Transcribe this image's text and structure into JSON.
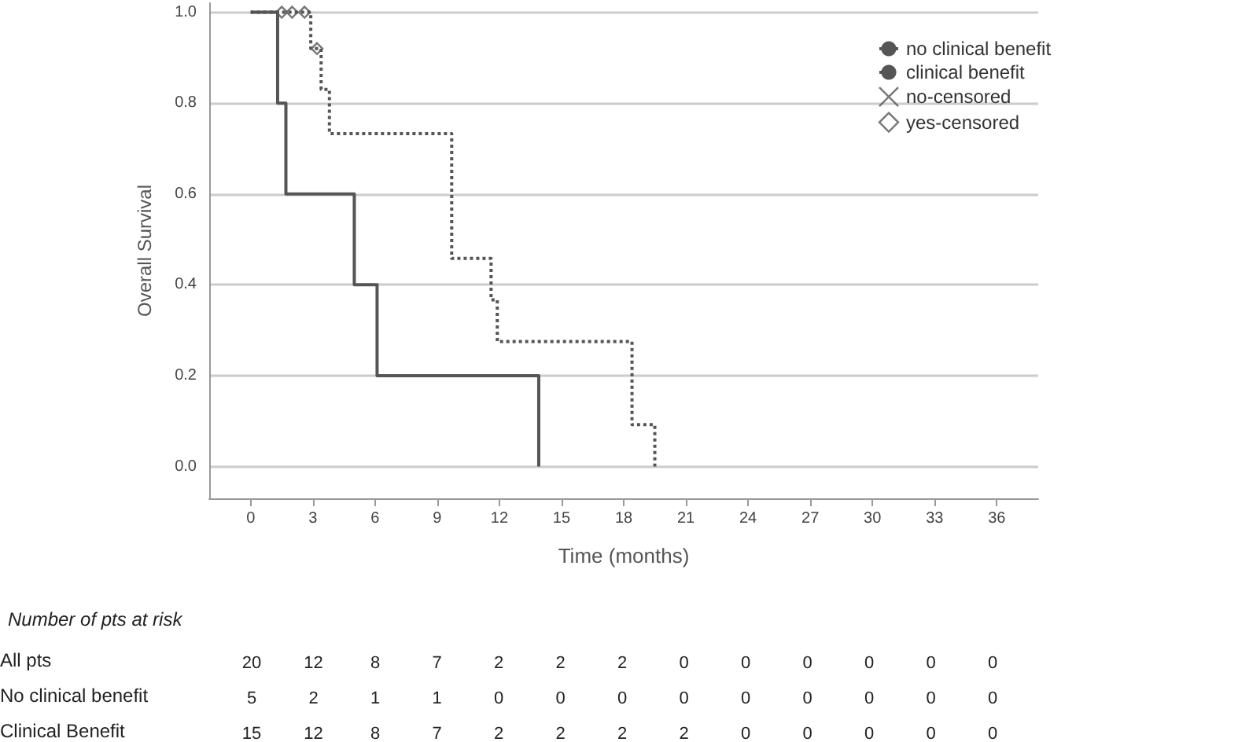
{
  "chart_data": [
    {
      "type": "step",
      "xlabel": "Time (months)",
      "ylabel": "Overall Survival",
      "xlim": [
        -2,
        38
      ],
      "ylim": [
        -0.07,
        1.02
      ],
      "xticks": [
        0,
        3,
        6,
        9,
        12,
        15,
        18,
        21,
        24,
        27,
        30,
        33,
        36
      ],
      "yticks": [
        {
          "value": 0,
          "label": "0.0"
        },
        {
          "value": 0.2,
          "label": "0.2"
        },
        {
          "value": 0.4,
          "label": "0.4"
        },
        {
          "value": 0.6,
          "label": "0.6"
        },
        {
          "value": 0.8,
          "label": "0.8"
        },
        {
          "value": 1,
          "label": "1.0"
        }
      ],
      "grid": "y",
      "legend": "right",
      "series": [
        {
          "name": "no clinical benefit",
          "color": "#555555",
          "line_style": "solid",
          "marker": "none",
          "x": [
            0,
            1.3,
            1.7,
            5.0,
            6.1,
            13.9
          ],
          "values": [
            1,
            0.8,
            0.6,
            0.4,
            0.2,
            0
          ]
        },
        {
          "name": "clinical benefit",
          "color": "#555555",
          "line_style": "dotted",
          "marker": "none",
          "x": [
            0,
            2.9,
            3.4,
            3.8,
            9.7,
            11.6,
            11.9,
            18.4,
            19.5
          ],
          "values": [
            1,
            0.92,
            0.83,
            0.733,
            0.458,
            0.367,
            0.275,
            0.092,
            0
          ]
        },
        {
          "name": "no-censored",
          "type": "scatter",
          "color": "#555555",
          "marker": "cross"
        },
        {
          "name": "yes-censored",
          "type": "scatter",
          "color": "#555555",
          "marker": "diamond",
          "x": [
            1.5,
            2.0,
            2.6,
            3.2
          ],
          "values": [
            1,
            1,
            1,
            0.92
          ]
        }
      ]
    },
    {
      "type": "other",
      "title": "Number of pts at risk",
      "categories": [
        "All pts",
        "No clinical benefit",
        "Clinical Benefit"
      ],
      "annotations": [
        "20",
        "12",
        "8",
        "7",
        "2",
        "2",
        "2",
        "0",
        "0",
        "0",
        "0",
        "0",
        "0",
        "5",
        "2",
        "1",
        "1",
        "0",
        "0",
        "0",
        "0",
        "0",
        "0",
        "0",
        "0",
        "0",
        "15",
        "12",
        "8",
        "7",
        "2",
        "2",
        "2",
        "2",
        "0",
        "0",
        "0",
        "0",
        "0"
      ]
    }
  ]
}
